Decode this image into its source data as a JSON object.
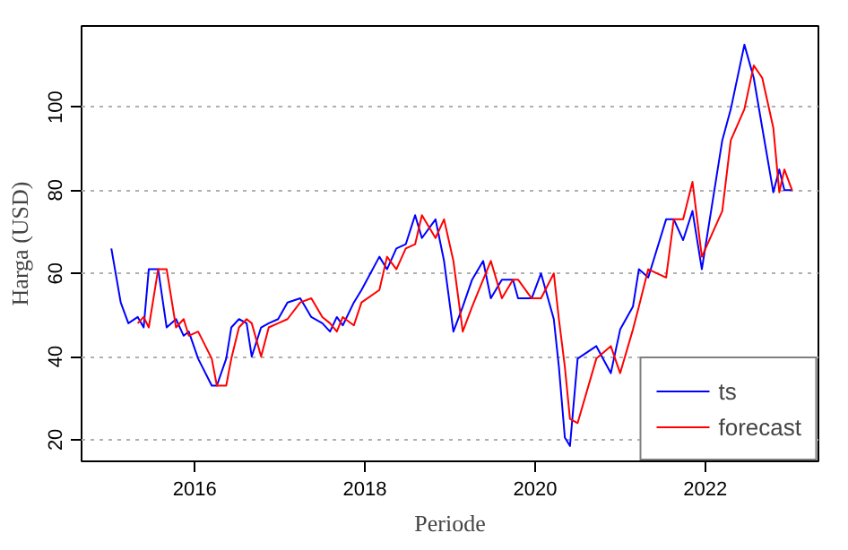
{
  "chart_data": {
    "type": "line",
    "xlabel": "Periode",
    "ylabel": "Harga (USD)",
    "xlim": [
      2014.67,
      2023.33
    ],
    "ylim": [
      14.8,
      119.5
    ],
    "xticks": [
      2016,
      2018,
      2020,
      2022
    ],
    "yticks": [
      20,
      40,
      60,
      80,
      100
    ],
    "grid": "y",
    "legend": "bottom right",
    "line_style": "solid",
    "series": [
      {
        "name": "ts",
        "color": "#0000ff",
        "x": [
          2015.02,
          2015.13,
          2015.22,
          2015.33,
          2015.4,
          2015.46,
          2015.57,
          2015.67,
          2015.78,
          2015.87,
          2015.93,
          2016.04,
          2016.2,
          2016.26,
          2016.37,
          2016.43,
          2016.52,
          2016.61,
          2016.67,
          2016.78,
          2016.87,
          2016.98,
          2017.09,
          2017.24,
          2017.37,
          2017.5,
          2017.59,
          2017.67,
          2017.74,
          2017.87,
          2017.96,
          2018.17,
          2018.26,
          2018.37,
          2018.48,
          2018.59,
          2018.67,
          2018.83,
          2018.93,
          2019.04,
          2019.15,
          2019.26,
          2019.39,
          2019.48,
          2019.61,
          2019.74,
          2019.8,
          2019.96,
          2020.07,
          2020.22,
          2020.28,
          2020.35,
          2020.41,
          2020.5,
          2020.72,
          2020.89,
          2021.0,
          2021.15,
          2021.22,
          2021.33,
          2021.54,
          2021.63,
          2021.74,
          2021.85,
          2021.96,
          2022.2,
          2022.3,
          2022.46,
          2022.57,
          2022.67,
          2022.8,
          2022.87,
          2022.93,
          2023.02
        ],
        "values": [
          66,
          53,
          48,
          49.5,
          47,
          61,
          61,
          47,
          49,
          45,
          46,
          39.5,
          33,
          33,
          39.5,
          47,
          49,
          48,
          40,
          47,
          48,
          49,
          53,
          54,
          49.5,
          48,
          46,
          49.5,
          47.5,
          53,
          56,
          64,
          61,
          66,
          67,
          74,
          68.5,
          73,
          63,
          46,
          52,
          58.5,
          63,
          54,
          58.5,
          58.5,
          54,
          54,
          60,
          49,
          37.5,
          20.5,
          18.5,
          39.5,
          42.5,
          36,
          46.5,
          52,
          61,
          59,
          73,
          73,
          68,
          75,
          61,
          92,
          99.5,
          115,
          107,
          95,
          79.5,
          85,
          80,
          80
        ]
      },
      {
        "name": "forecast",
        "color": "#ff0000",
        "x": [
          2015.33,
          2015.4,
          2015.46,
          2015.57,
          2015.67,
          2015.78,
          2015.87,
          2015.93,
          2016.04,
          2016.2,
          2016.26,
          2016.37,
          2016.43,
          2016.52,
          2016.61,
          2016.67,
          2016.78,
          2016.87,
          2016.98,
          2017.09,
          2017.24,
          2017.37,
          2017.5,
          2017.59,
          2017.67,
          2017.74,
          2017.87,
          2017.96,
          2018.17,
          2018.26,
          2018.37,
          2018.48,
          2018.59,
          2018.67,
          2018.83,
          2018.93,
          2019.04,
          2019.15,
          2019.26,
          2019.39,
          2019.48,
          2019.61,
          2019.74,
          2019.8,
          2019.96,
          2020.07,
          2020.22,
          2020.28,
          2020.35,
          2020.41,
          2020.5,
          2020.72,
          2020.89,
          2021.0,
          2021.15,
          2021.22,
          2021.33,
          2021.54,
          2021.63,
          2021.74,
          2021.85,
          2021.96,
          2022.2,
          2022.3,
          2022.46,
          2022.57,
          2022.67,
          2022.8,
          2022.87,
          2022.93,
          2023.02
        ],
        "values": [
          48,
          49.5,
          47,
          61,
          61,
          47,
          49,
          45,
          46,
          39.5,
          33,
          33,
          39.5,
          47,
          49,
          48,
          40,
          47,
          48,
          49,
          53,
          54,
          49.5,
          48,
          46,
          49.5,
          47.5,
          53,
          56,
          64,
          61,
          66,
          67,
          74,
          68.5,
          73,
          63,
          46,
          52,
          58.5,
          63,
          54,
          58.5,
          58.5,
          54,
          54,
          60,
          49,
          37.5,
          25,
          24,
          39.5,
          42.5,
          36,
          46.5,
          52,
          61,
          59,
          73,
          73,
          82,
          64,
          75,
          92,
          99.5,
          110,
          107,
          95,
          79.5,
          85,
          80
        ]
      }
    ]
  }
}
